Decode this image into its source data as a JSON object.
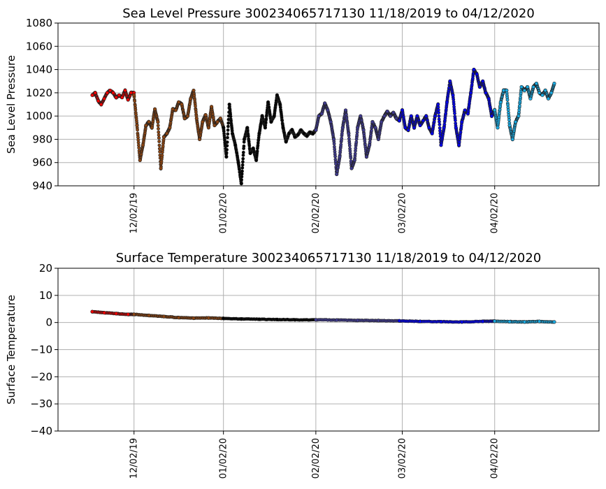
{
  "chart_data": [
    {
      "type": "scatter",
      "title": "Sea Level Pressure 300234065717130  11/18/2019 to 04/12/2020",
      "xlabel": "",
      "ylabel": "Sea Level Pressure",
      "xlim_days": [
        -25.5,
        156
      ],
      "ylim": [
        940,
        1080
      ],
      "yticks": [
        940,
        960,
        980,
        1000,
        1020,
        1040,
        1060,
        1080
      ],
      "xtick_days": [
        0,
        30,
        61,
        90,
        121
      ],
      "xtick_labels": [
        "12/02/19",
        "01/02/20",
        "02/02/20",
        "03/02/20",
        "04/02/20"
      ],
      "grid": true,
      "series": [
        {
          "name": "segment-1",
          "color": "#ee0000",
          "day": [
            -14,
            -13,
            -12,
            -11,
            -10,
            -9,
            -8,
            -7,
            -6,
            -5,
            -4,
            -3,
            -2,
            -1,
            0
          ],
          "values": [
            1018,
            1020,
            1013,
            1010,
            1015,
            1020,
            1022,
            1020,
            1016,
            1018,
            1016,
            1022,
            1014,
            1020,
            1020
          ]
        },
        {
          "name": "segment-2",
          "color": "#8b4513",
          "day": [
            0,
            1,
            2,
            3,
            4,
            5,
            6,
            7,
            8,
            9,
            10,
            11,
            12,
            13,
            14,
            15,
            16,
            17,
            18,
            19,
            20,
            21,
            22,
            23,
            24,
            25,
            26,
            27,
            28,
            29,
            30
          ],
          "values": [
            1018,
            992,
            962,
            975,
            992,
            995,
            990,
            1006,
            995,
            955,
            982,
            985,
            990,
            1006,
            1005,
            1012,
            1010,
            998,
            1000,
            1015,
            1022,
            998,
            980,
            995,
            1001,
            990,
            1008,
            992,
            995,
            998,
            990
          ]
        },
        {
          "name": "segment-3",
          "color": "#000000",
          "day": [
            30,
            31,
            32,
            33,
            34,
            35,
            36,
            37,
            38,
            39,
            40,
            41,
            42,
            43,
            44,
            45,
            46,
            47,
            48,
            49,
            50,
            51,
            52,
            53,
            54,
            55,
            56,
            57,
            58,
            59,
            60,
            61
          ],
          "values": [
            990,
            965,
            1010,
            985,
            975,
            960,
            942,
            980,
            990,
            968,
            972,
            962,
            985,
            1000,
            990,
            1012,
            995,
            1000,
            1018,
            1010,
            990,
            978,
            985,
            988,
            982,
            984,
            988,
            985,
            983,
            986,
            985,
            988
          ]
        },
        {
          "name": "segment-4",
          "color": "#3f3a8c",
          "day": [
            61,
            62,
            63,
            64,
            65,
            66,
            67,
            68,
            69,
            70,
            71,
            72,
            73,
            74,
            75,
            76,
            77,
            78,
            79,
            80,
            81,
            82,
            83,
            84,
            85,
            86,
            87,
            88,
            89
          ],
          "values": [
            988,
            1000,
            1002,
            1011,
            1005,
            995,
            980,
            950,
            965,
            990,
            1005,
            985,
            955,
            962,
            990,
            1000,
            988,
            965,
            975,
            995,
            990,
            980,
            995,
            1000,
            1004,
            1000,
            1003,
            998,
            996
          ]
        },
        {
          "name": "segment-5",
          "color": "#0000e6",
          "day": [
            89,
            90,
            91,
            92,
            93,
            94,
            95,
            96,
            97,
            98,
            99,
            100,
            101,
            102,
            103,
            104,
            105,
            106,
            107,
            108,
            109,
            110,
            111,
            112,
            113,
            114,
            115,
            116,
            117,
            118,
            119,
            120,
            121
          ],
          "values": [
            996,
            1005,
            990,
            988,
            1000,
            990,
            1000,
            992,
            996,
            1000,
            990,
            985,
            1000,
            1010,
            975,
            990,
            1012,
            1030,
            1018,
            990,
            975,
            995,
            1005,
            1002,
            1020,
            1040,
            1036,
            1025,
            1030,
            1020,
            1015,
            1000,
            1005
          ]
        },
        {
          "name": "segment-6",
          "color": "#1ba9e0",
          "day": [
            121,
            122,
            123,
            124,
            125,
            126,
            127,
            128,
            129,
            130,
            131,
            132,
            133,
            134,
            135,
            136,
            137,
            138,
            139,
            140,
            141
          ],
          "values": [
            1005,
            990,
            1012,
            1022,
            1022,
            992,
            980,
            995,
            1000,
            1025,
            1022,
            1025,
            1015,
            1025,
            1028,
            1020,
            1018,
            1022,
            1015,
            1020,
            1028
          ]
        }
      ]
    },
    {
      "type": "scatter",
      "title": "Surface Temperature 300234065717130  11/18/2019 to 04/12/2020",
      "xlabel": "",
      "ylabel": "Surface Temperature",
      "xlim_days": [
        -25.5,
        156
      ],
      "ylim": [
        -40,
        20
      ],
      "yticks": [
        -40,
        -30,
        -20,
        -10,
        0,
        10,
        20
      ],
      "xtick_days": [
        0,
        30,
        61,
        90,
        121
      ],
      "xtick_labels": [
        "12/02/19",
        "01/02/20",
        "02/02/20",
        "03/02/20",
        "04/02/20"
      ],
      "grid": true,
      "series": [
        {
          "name": "segment-1",
          "color": "#ee0000",
          "day": [
            -14,
            -10,
            -6,
            -2,
            0
          ],
          "values": [
            4.0,
            3.6,
            3.3,
            3.0,
            3.0
          ]
        },
        {
          "name": "segment-2",
          "color": "#8b4513",
          "day": [
            0,
            5,
            10,
            15,
            20,
            25,
            30
          ],
          "values": [
            3.0,
            2.6,
            2.2,
            1.8,
            1.6,
            1.7,
            1.5
          ]
        },
        {
          "name": "segment-3",
          "color": "#000000",
          "day": [
            30,
            36,
            42,
            48,
            54,
            61
          ],
          "values": [
            1.5,
            1.3,
            1.2,
            1.1,
            1.0,
            1.0
          ]
        },
        {
          "name": "segment-4",
          "color": "#3f3a8c",
          "day": [
            61,
            68,
            75,
            82,
            89
          ],
          "values": [
            1.0,
            0.9,
            0.8,
            0.7,
            0.6
          ]
        },
        {
          "name": "segment-5",
          "color": "#0000e6",
          "day": [
            89,
            96,
            103,
            110,
            117,
            121
          ],
          "values": [
            0.6,
            0.4,
            0.3,
            0.2,
            0.4,
            0.5
          ]
        },
        {
          "name": "segment-6",
          "color": "#1ba9e0",
          "day": [
            121,
            126,
            131,
            136,
            141
          ],
          "values": [
            0.5,
            0.3,
            0.2,
            0.4,
            0.2
          ]
        }
      ]
    }
  ]
}
